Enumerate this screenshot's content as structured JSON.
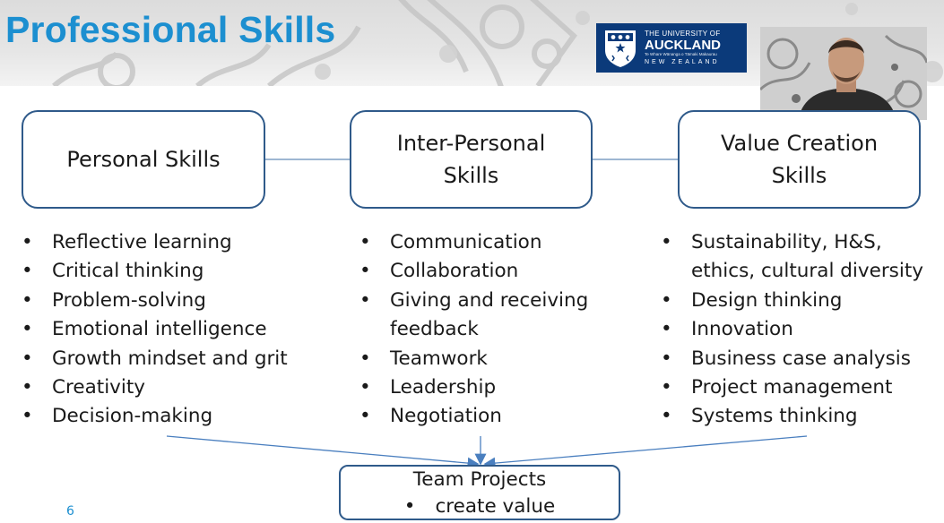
{
  "slide": {
    "title": "Professional Skills",
    "page_number": "6",
    "accent_color": "#1c8fd0",
    "border_color": "#2f5a8a"
  },
  "logo": {
    "line1": "THE UNIVERSITY OF",
    "line2": "AUCKLAND",
    "line3": "Te Whare Wānanga o Tāmaki Makaurau",
    "line4": "NEW ZEALAND",
    "background": "#0b3a7a"
  },
  "boxes": {
    "personal": {
      "line1": "Personal Skills"
    },
    "interpersonal": {
      "line1": "Inter-Personal",
      "line2": "Skills"
    },
    "value": {
      "line1": "Value Creation",
      "line2": "Skills"
    }
  },
  "lists": {
    "personal": [
      "Reflective learning",
      "Critical thinking",
      "Problem-solving",
      "Emotional intelligence",
      "Growth mindset and grit",
      "Creativity",
      "Decision-making"
    ],
    "interpersonal": [
      "Communication",
      "Collaboration",
      "Giving and receiving feedback",
      "Teamwork",
      "Leadership",
      "Negotiation"
    ],
    "value": [
      "Sustainability, H&S, ethics, cultural diversity",
      "Design thinking",
      "Innovation",
      "Business case analysis",
      "Project management",
      "Systems thinking"
    ]
  },
  "team": {
    "title": "Team Projects",
    "bullet": "create value"
  },
  "icons": {
    "logo_crest": "university-crest-icon",
    "webcam": "presenter-webcam"
  }
}
